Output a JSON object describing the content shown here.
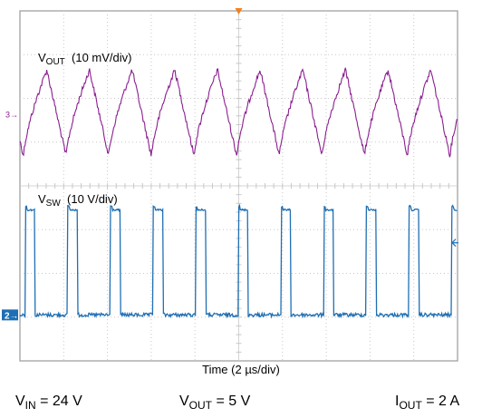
{
  "chart_data": {
    "type": "line",
    "xlabel": "Time (2 µs/div)",
    "x_divisions": 10,
    "y_divisions": 8,
    "time_per_div_us": 2,
    "series": [
      {
        "label_main": "V",
        "label_sub": "OUT",
        "label_scale": "(10 mV/div)",
        "channel_marker": "3",
        "color": "#8b1e8f",
        "waveform": "ripple",
        "period_us": 1.95,
        "peak_to_peak_mV": 20
      },
      {
        "label_main": "V",
        "label_sub": "SW",
        "label_scale": "(10 V/div)",
        "channel_marker": "2",
        "color": "#1f6fb4",
        "waveform": "square",
        "period_us": 1.95,
        "high_V": 24,
        "low_V": 0
      }
    ],
    "conditions": [
      {
        "main": "V",
        "sub": "IN",
        "rest": " = 24 V"
      },
      {
        "main": "V",
        "sub": "OUT",
        "rest": " = 5 V"
      },
      {
        "main": "I",
        "sub": "OUT",
        "rest": " = 2 A"
      }
    ],
    "colors": {
      "grid": "#c8c8c8",
      "frame": "#9a9a9a",
      "trigger": "#f08020"
    }
  }
}
